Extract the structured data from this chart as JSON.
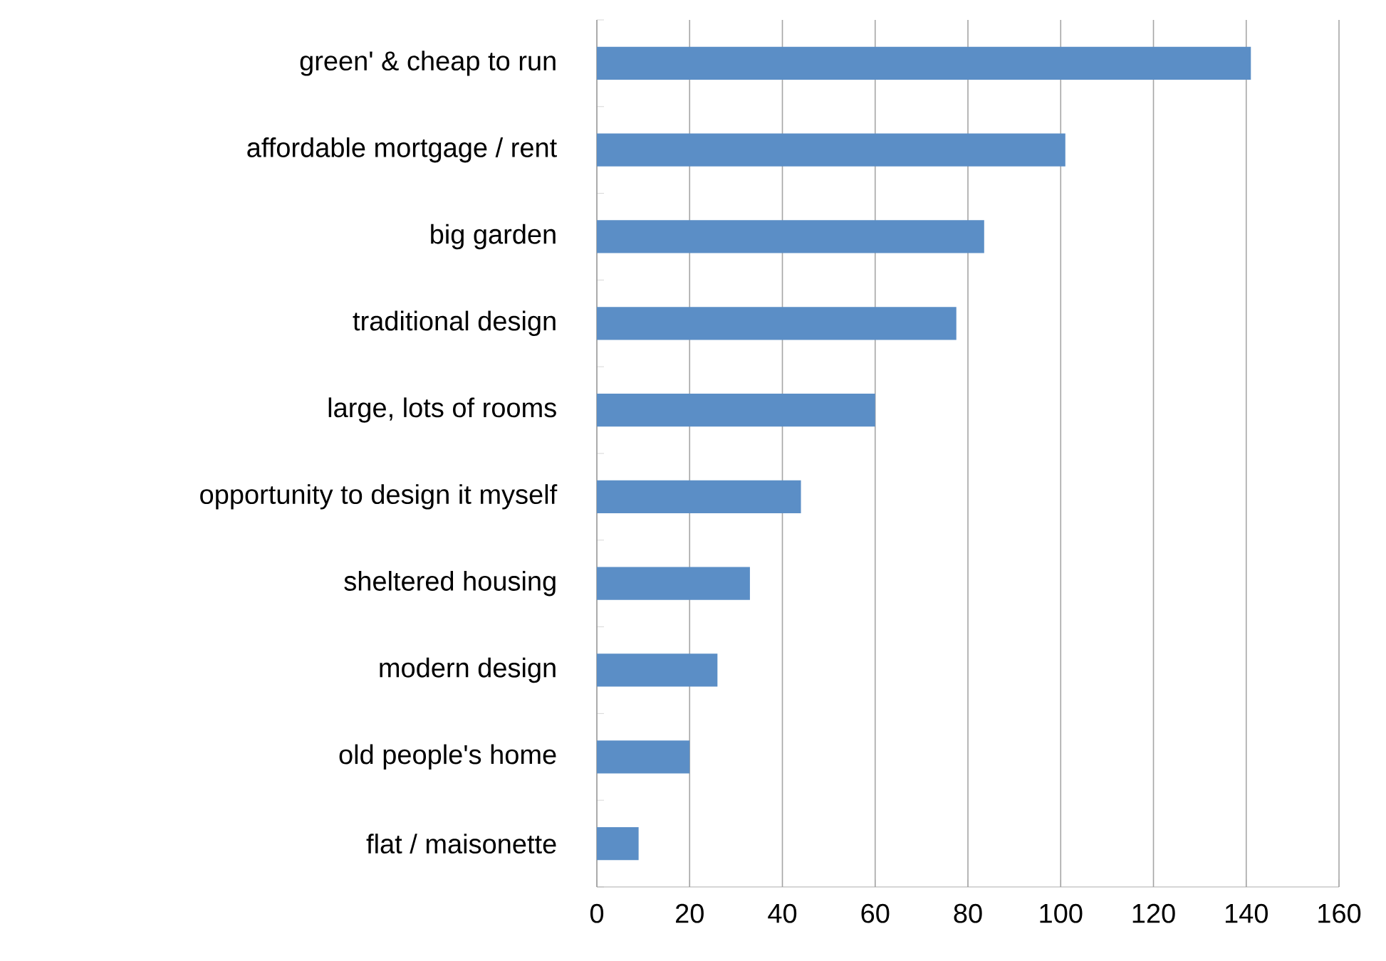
{
  "chart_data": {
    "type": "bar",
    "orientation": "horizontal",
    "categories": [
      "green' & cheap to run",
      "affordable mortgage / rent",
      "big garden",
      "traditional design",
      "large, lots of rooms",
      "opportunity to design it myself",
      "sheltered housing",
      "modern design",
      "old people's home",
      "flat / maisonette"
    ],
    "values": [
      141,
      101,
      83.5,
      77.5,
      60,
      44,
      33,
      26,
      20,
      9
    ],
    "color": "#5b8ec6",
    "xlim": [
      0,
      160
    ],
    "xticks": [
      0,
      20,
      40,
      60,
      80,
      100,
      120,
      140,
      160
    ],
    "grid": "x"
  }
}
